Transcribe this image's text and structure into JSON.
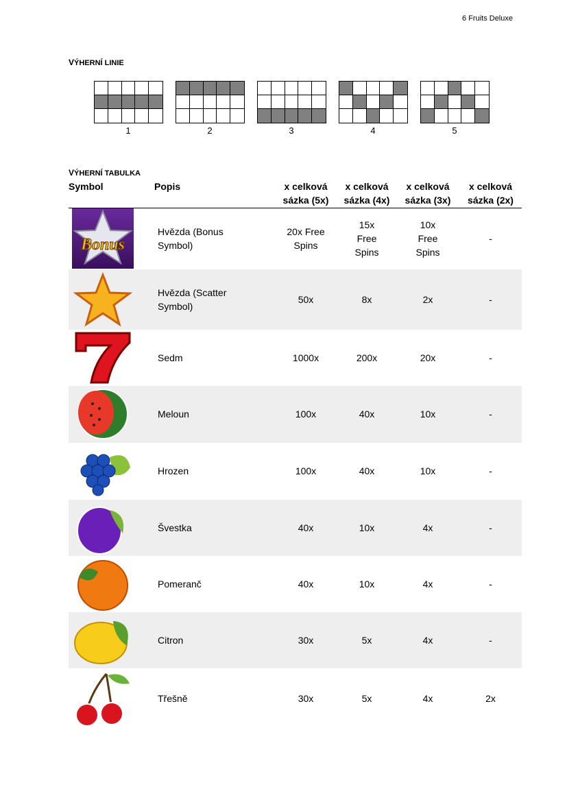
{
  "header": {
    "title": "6 Fruits Deluxe"
  },
  "paylines": {
    "heading_first": "V",
    "heading_rest": "ÝHERNÍ LINIE",
    "lines": [
      {
        "label": "1",
        "rows": [
          1,
          1,
          1,
          1,
          1
        ]
      },
      {
        "label": "2",
        "rows": [
          0,
          0,
          0,
          0,
          0
        ]
      },
      {
        "label": "3",
        "rows": [
          2,
          2,
          2,
          2,
          2
        ]
      },
      {
        "label": "4",
        "rows": [
          0,
          1,
          2,
          1,
          0
        ]
      },
      {
        "label": "5",
        "rows": [
          2,
          1,
          0,
          1,
          2
        ]
      }
    ]
  },
  "paytable": {
    "heading_first": "V",
    "heading_rest": "ÝHERNÍ TABULKA",
    "columns": [
      "Symbol",
      "Popis",
      "x celková sázka (5x)",
      "x celková sázka (4x)",
      "x celková sázka (3x)",
      "x celková sázka (2x)"
    ],
    "rows": [
      {
        "icon": "bonus-star-icon",
        "desc": "Hvězda (Bonus Symbol)",
        "v5": "20x Free Spins",
        "v4": "15x Free Spins",
        "v3": "10x Free Spins",
        "v2": "-"
      },
      {
        "icon": "scatter-star-icon",
        "desc": "Hvězda (Scatter Symbol)",
        "v5": "50x",
        "v4": "8x",
        "v3": "2x",
        "v2": "-"
      },
      {
        "icon": "seven-icon",
        "desc": "Sedm",
        "v5": "1000x",
        "v4": "200x",
        "v3": "20x",
        "v2": "-"
      },
      {
        "icon": "watermelon-icon",
        "desc": "Meloun",
        "v5": "100x",
        "v4": "40x",
        "v3": "10x",
        "v2": "-"
      },
      {
        "icon": "grapes-icon",
        "desc": "Hrozen",
        "v5": "100x",
        "v4": "40x",
        "v3": "10x",
        "v2": "-"
      },
      {
        "icon": "plum-icon",
        "desc": "Švestka",
        "v5": "40x",
        "v4": "10x",
        "v3": "4x",
        "v2": "-"
      },
      {
        "icon": "orange-icon",
        "desc": "Pomeranč",
        "v5": "40x",
        "v4": "10x",
        "v3": "4x",
        "v2": "-"
      },
      {
        "icon": "lemon-icon",
        "desc": "Citron",
        "v5": "30x",
        "v4": "5x",
        "v3": "4x",
        "v2": "-"
      },
      {
        "icon": "cherry-icon",
        "desc": "Třešně",
        "v5": "30x",
        "v4": "5x",
        "v3": "4x",
        "v2": "2x"
      }
    ],
    "bonus_logo_text": "Bonus"
  }
}
